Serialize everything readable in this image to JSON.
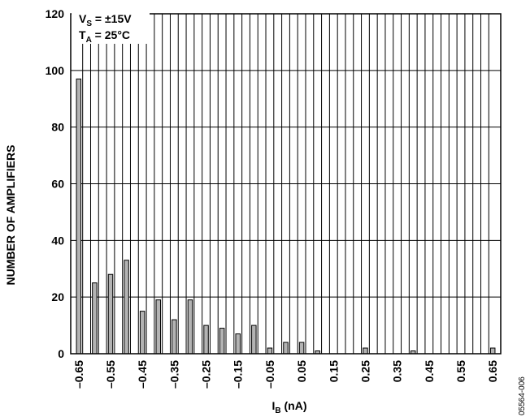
{
  "chart_data": {
    "type": "bar",
    "x": [
      -0.65,
      -0.625,
      -0.6,
      -0.575,
      -0.55,
      -0.525,
      -0.5,
      -0.475,
      -0.45,
      -0.425,
      -0.4,
      -0.375,
      -0.35,
      -0.325,
      -0.3,
      -0.275,
      -0.25,
      -0.225,
      -0.2,
      -0.175,
      -0.15,
      -0.125,
      -0.1,
      -0.075,
      -0.05,
      -0.025,
      0,
      0.025,
      0.05,
      0.075,
      0.1,
      0.125,
      0.15,
      0.175,
      0.2,
      0.225,
      0.25,
      0.275,
      0.3,
      0.325,
      0.35,
      0.375,
      0.4,
      0.425,
      0.45,
      0.475,
      0.5,
      0.525,
      0.55,
      0.575,
      0.6,
      0.625,
      0.65
    ],
    "values": [
      97,
      0,
      25,
      0,
      28,
      0,
      33,
      0,
      15,
      0,
      19,
      0,
      12,
      0,
      19,
      0,
      10,
      0,
      9,
      0,
      7,
      0,
      10,
      0,
      2,
      0,
      4,
      0,
      4,
      0,
      1,
      0,
      0,
      0,
      0,
      0,
      2,
      0,
      0,
      0,
      0,
      0,
      1,
      0,
      0,
      0,
      0,
      0,
      0,
      0,
      0,
      0,
      2
    ],
    "xlabel_main": "I",
    "xlabel_sub": "B",
    "xlabel_unit": " (nA)",
    "ylabel": "NUMBER OF AMPLIFIERS",
    "ylim": [
      0,
      120
    ],
    "xlim": [
      -0.675,
      0.675
    ],
    "yticks": [
      "0",
      "20",
      "40",
      "60",
      "80",
      "100",
      "120"
    ],
    "xtick_labels": [
      "–0.65",
      "–0.55",
      "–0.45",
      "–0.35",
      "–0.25",
      "–0.15",
      "–0.05",
      "0.05",
      "0.15",
      "0.25",
      "0.35",
      "0.45",
      "0.55",
      "0.65"
    ],
    "xtick_values": [
      -0.65,
      -0.55,
      -0.45,
      -0.35,
      -0.25,
      -0.15,
      -0.05,
      0.05,
      0.15,
      0.25,
      0.35,
      0.45,
      0.55,
      0.65
    ],
    "grid": true,
    "legend": "none",
    "bar_color": "#b3b3b3",
    "conditions": {
      "line1_main": "V",
      "line1_sub": "S",
      "line1_rest": " = ±15V",
      "line2_main": "T",
      "line2_sub": "A",
      "line2_rest": " = 25°C"
    },
    "figure_id": "05564-006"
  }
}
